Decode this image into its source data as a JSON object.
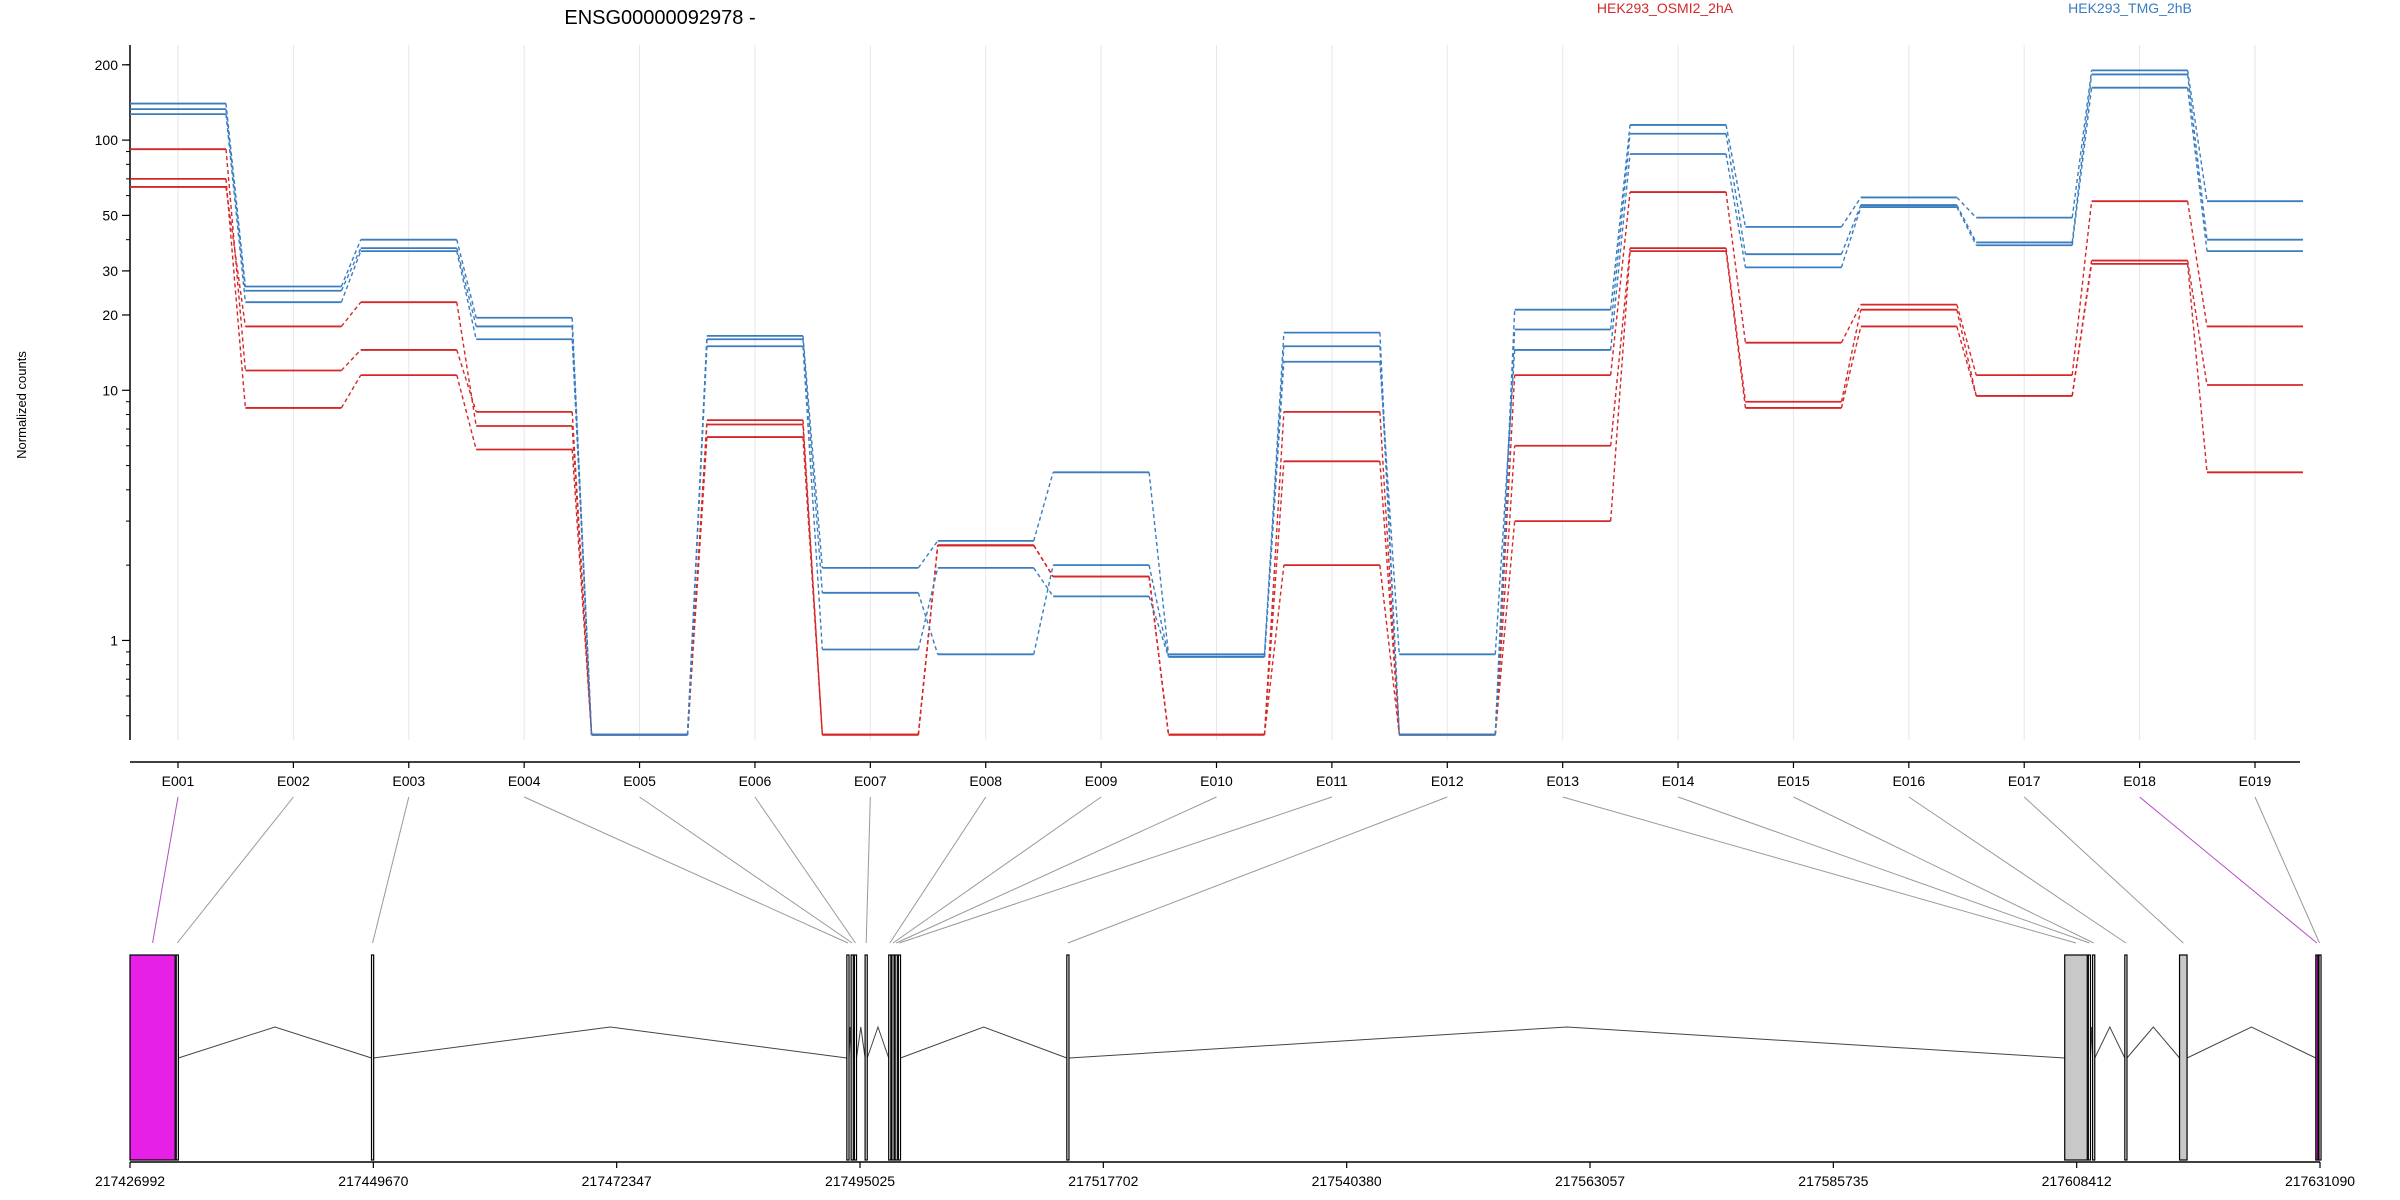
{
  "chart_data": {
    "type": "line",
    "title": "ENSG00000092978 -",
    "ylabel": "Normalized counts",
    "yscale": "log",
    "ylim": [
      0.4,
      240
    ],
    "yticks": [
      1,
      10,
      20,
      30,
      50,
      100,
      200
    ],
    "grid": true,
    "legend_placement": "top",
    "categories": [
      "E001",
      "E002",
      "E003",
      "E004",
      "E005",
      "E006",
      "E007",
      "E008",
      "E009",
      "E010",
      "E011",
      "E012",
      "E013",
      "E014",
      "E015",
      "E016",
      "E017",
      "E018",
      "E019"
    ],
    "series": [
      {
        "name": "HEK293_OSMI2_2hA",
        "color": "#d62728",
        "values": [
          92,
          12,
          14.5,
          8.2,
          0.42,
          7.6,
          0.42,
          2.4,
          1.8,
          0.42,
          8.2,
          0.42,
          11.5,
          62,
          15.5,
          22,
          11.5,
          57,
          18
        ]
      },
      {
        "color": "#d62728",
        "values": [
          70,
          8.5,
          11.5,
          5.8,
          0.42,
          7.3,
          0.42,
          2.4,
          1.8,
          0.42,
          5.2,
          0.42,
          6.0,
          37,
          9.0,
          21,
          9.5,
          33,
          10.5
        ]
      },
      {
        "color": "#d62728",
        "values": [
          65,
          18,
          22.5,
          7.2,
          0.42,
          6.5,
          0.42,
          2.4,
          1.8,
          0.42,
          2.0,
          0.42,
          3.0,
          36,
          8.5,
          18,
          9.5,
          32,
          4.7
        ]
      },
      {
        "name": "HEK293_TMG_2hB",
        "color": "#3a7dbf",
        "values": [
          140,
          26,
          40,
          19.5,
          0.42,
          16.5,
          1.95,
          2.5,
          4.7,
          0.88,
          17,
          0.42,
          21,
          115,
          45,
          59,
          49,
          190,
          57
        ]
      },
      {
        "color": "#3a7dbf",
        "values": [
          133,
          25,
          37,
          18,
          0.42,
          16,
          1.55,
          0.88,
          2.0,
          0.86,
          15,
          0.42,
          17.5,
          106,
          35,
          55,
          39,
          183,
          40
        ]
      },
      {
        "color": "#3a7dbf",
        "values": [
          127,
          22.5,
          36,
          16,
          0.42,
          15,
          0.92,
          1.95,
          1.5,
          0.86,
          13,
          0.88,
          14.5,
          88,
          31,
          54,
          38,
          162,
          36
        ]
      }
    ],
    "highlighted_exons": [
      "E001",
      "E018"
    ],
    "genomic_axis": {
      "ticks": [
        217426992,
        217449670,
        217472347,
        217495025,
        217517702,
        217540380,
        217563057,
        217585735,
        217608412,
        217631090
      ],
      "labels": [
        "217426992",
        "217449670",
        "217472347",
        "217495025",
        "217517702",
        "217540380",
        "217563057",
        "217585735",
        "217608412",
        "217631090"
      ]
    },
    "exon_regions": [
      {
        "exon": "E001",
        "start": 217426992,
        "end": 217431200
      },
      {
        "exon": "E002",
        "start": 217431300,
        "end": 217431500
      },
      {
        "exon": "E003",
        "start": 217449500,
        "end": 217449700
      },
      {
        "exon": "E004",
        "start": 217493800,
        "end": 217494000
      },
      {
        "exon": "E005",
        "start": 217494200,
        "end": 217494400
      },
      {
        "exon": "E006",
        "start": 217494500,
        "end": 217494700
      },
      {
        "exon": "E007",
        "start": 217495500,
        "end": 217495700
      },
      {
        "exon": "E008",
        "start": 217497700,
        "end": 217497900
      },
      {
        "exon": "E009",
        "start": 217498000,
        "end": 217498200
      },
      {
        "exon": "E010",
        "start": 217498300,
        "end": 217498500
      },
      {
        "exon": "E011",
        "start": 217498600,
        "end": 217498800
      },
      {
        "exon": "E012",
        "start": 217514300,
        "end": 217514500
      },
      {
        "exon": "E013",
        "start": 217607300,
        "end": 217609400
      },
      {
        "exon": "E014",
        "start": 217609500,
        "end": 217609700
      },
      {
        "exon": "E015",
        "start": 217609900,
        "end": 217610100
      },
      {
        "exon": "E016",
        "start": 217612900,
        "end": 217613100
      },
      {
        "exon": "E017",
        "start": 217618000,
        "end": 217618700
      },
      {
        "exon": "E018",
        "start": 217630700,
        "end": 217630900
      },
      {
        "exon": "E019",
        "start": 217631000,
        "end": 217631090
      }
    ],
    "introns": [
      [
        217431500,
        217449500
      ],
      [
        217449700,
        217493800
      ],
      [
        217494000,
        217494200
      ],
      [
        217494400,
        217494500
      ],
      [
        217494700,
        217495500
      ],
      [
        217495700,
        217497700
      ],
      [
        217498800,
        217514300
      ],
      [
        217514500,
        217607300
      ],
      [
        217609700,
        217609900
      ],
      [
        217610100,
        217612900
      ],
      [
        217613100,
        217618000
      ],
      [
        217618700,
        217630700
      ]
    ]
  },
  "colors": {
    "highlight": "#e620e6",
    "default_exon": "#c8c8c8",
    "gridline": "#e6e6ee",
    "connector": "#999999",
    "highlight_connector": "#b24fc4"
  }
}
